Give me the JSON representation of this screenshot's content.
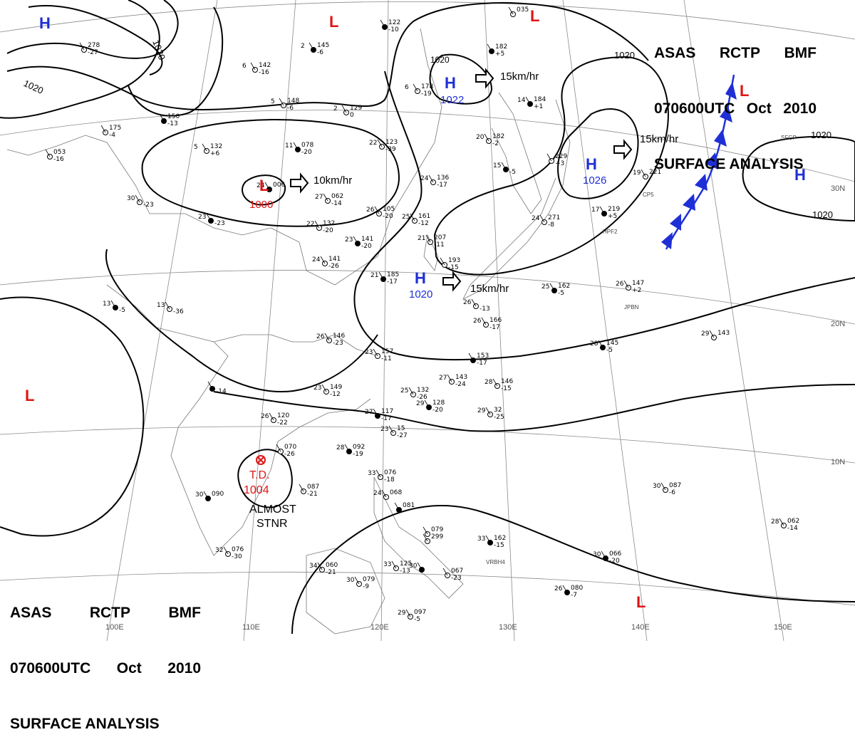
{
  "header": {
    "line1": [
      "ASAS",
      "RCTP",
      "BMF"
    ],
    "line2": [
      "070600UTC",
      "Oct",
      "2010"
    ],
    "line3": "SURFACE ANALYSIS"
  },
  "colors": {
    "high": "#1f2fd6",
    "low": "#e01414",
    "front": "#1f2fd6",
    "isobar": "#000000",
    "grid": "#888888"
  },
  "pressure_centers": [
    {
      "type": "H",
      "label": "H",
      "value": "1022"
    },
    {
      "type": "H",
      "label": "H",
      "value": "1026"
    },
    {
      "type": "H",
      "label": "H",
      "value": "1020"
    },
    {
      "type": "H",
      "label": "H",
      "value": ""
    },
    {
      "type": "H",
      "label": "H",
      "value": ""
    },
    {
      "type": "L",
      "label": "L",
      "value": "1000"
    },
    {
      "type": "L",
      "label": "L",
      "value": ""
    },
    {
      "type": "L",
      "label": "L",
      "value": ""
    },
    {
      "type": "L",
      "label": "L",
      "value": ""
    },
    {
      "type": "L",
      "label": "L",
      "value": ""
    },
    {
      "type": "L",
      "label": "L",
      "value": ""
    }
  ],
  "tropical_depression": {
    "label": "T.D.",
    "pressure": "1004",
    "motion": [
      "ALMOST",
      "STNR"
    ]
  },
  "movements": [
    "15km/hr",
    "15km/hr",
    "10km/hr",
    "15km/hr"
  ],
  "isobar_labels": [
    "1020",
    "1020",
    "1020",
    "1020",
    "1020",
    "1020"
  ],
  "longitude_labels": [
    "100E",
    "110E",
    "120E",
    "130E",
    "140E",
    "150E"
  ],
  "latitude_labels": [
    "30N",
    "20N",
    "10N"
  ],
  "stations": [
    {
      "temp": "",
      "p": "122",
      "t": "-10"
    },
    {
      "temp": "",
      "p": "035",
      "t": ""
    },
    {
      "temp": "",
      "p": "278",
      "t": "-27"
    },
    {
      "temp": "2",
      "p": "145",
      "t": "-6"
    },
    {
      "temp": "6",
      "p": "142",
      "t": "-16"
    },
    {
      "temp": "6",
      "p": "178",
      "t": "-19"
    },
    {
      "temp": "",
      "p": "182",
      "t": "+5"
    },
    {
      "temp": "5",
      "p": "148",
      "t": "-6"
    },
    {
      "temp": "2",
      "p": "129",
      "t": "0"
    },
    {
      "temp": "",
      "p": "150",
      "t": "-13"
    },
    {
      "temp": "",
      "p": "175",
      "t": "-4"
    },
    {
      "temp": "5",
      "p": "132",
      "t": "+6"
    },
    {
      "temp": "11",
      "p": "078",
      "t": "-20"
    },
    {
      "temp": "22",
      "p": "123",
      "t": "-39"
    },
    {
      "temp": "20",
      "p": "182",
      "t": "-2"
    },
    {
      "temp": "14",
      "p": "184",
      "t": "+1"
    },
    {
      "temp": "",
      "p": "229",
      "t": "+3"
    },
    {
      "temp": "",
      "p": "053",
      "t": "-16"
    },
    {
      "temp": "24",
      "p": "006",
      "t": ""
    },
    {
      "temp": "27",
      "p": "062",
      "t": "-14"
    },
    {
      "temp": "24",
      "p": "136",
      "t": "-17"
    },
    {
      "temp": "15",
      "p": "",
      "t": "-5"
    },
    {
      "temp": "19",
      "p": "221",
      "t": ""
    },
    {
      "temp": "30",
      "p": "",
      "t": "-23"
    },
    {
      "temp": "23",
      "p": "",
      "t": "-23"
    },
    {
      "temp": "26",
      "p": "105",
      "t": "-20"
    },
    {
      "temp": "25",
      "p": "161",
      "t": "-12"
    },
    {
      "temp": "17",
      "p": "219",
      "t": "+5"
    },
    {
      "temp": "24",
      "p": "271",
      "t": "-8"
    },
    {
      "temp": "22",
      "p": "132",
      "t": "-20"
    },
    {
      "temp": "23",
      "p": "141",
      "t": "-20"
    },
    {
      "temp": "21",
      "p": "207",
      "t": "-11"
    },
    {
      "temp": "24",
      "p": "141",
      "t": "-26"
    },
    {
      "temp": "21",
      "p": "185",
      "t": "-17"
    },
    {
      "temp": "",
      "p": "193",
      "t": "-15"
    },
    {
      "temp": "26",
      "p": "",
      "t": "-13"
    },
    {
      "temp": "25",
      "p": "162",
      "t": "-5"
    },
    {
      "temp": "26",
      "p": "147",
      "t": "+2"
    },
    {
      "temp": "13",
      "p": "",
      "t": "-36"
    },
    {
      "temp": "13",
      "p": "",
      "t": "-5"
    },
    {
      "temp": "26",
      "p": "146",
      "t": "-23"
    },
    {
      "temp": "26",
      "p": "166",
      "t": "-17"
    },
    {
      "temp": "28",
      "p": "145",
      "t": "-5"
    },
    {
      "temp": "29",
      "p": "143",
      "t": ""
    },
    {
      "temp": "23",
      "p": "157",
      "t": "-11"
    },
    {
      "temp": "",
      "p": "153",
      "t": "-17"
    },
    {
      "temp": "27",
      "p": "143",
      "t": "-24"
    },
    {
      "temp": "28",
      "p": "146",
      "t": "-15"
    },
    {
      "temp": "",
      "p": "",
      "t": "-14"
    },
    {
      "temp": "23",
      "p": "149",
      "t": "-12"
    },
    {
      "temp": "25",
      "p": "132",
      "t": "-26"
    },
    {
      "temp": "29",
      "p": "128",
      "t": "-20"
    },
    {
      "temp": "29",
      "p": "32",
      "t": "-25"
    },
    {
      "temp": "26",
      "p": "120",
      "t": "-22"
    },
    {
      "temp": "27",
      "p": "117",
      "t": "-17"
    },
    {
      "temp": "23",
      "p": "15",
      "t": "-27"
    },
    {
      "temp": "",
      "p": "070",
      "t": "-26"
    },
    {
      "temp": "28",
      "p": "092",
      "t": "-19"
    },
    {
      "temp": "33",
      "p": "076",
      "t": "-18"
    },
    {
      "temp": "30",
      "p": "087",
      "t": "-6"
    },
    {
      "temp": "30",
      "p": "090",
      "t": ""
    },
    {
      "temp": "",
      "p": "087",
      "t": "-21"
    },
    {
      "temp": "24",
      "p": "068",
      "t": ""
    },
    {
      "temp": "",
      "p": "081",
      "t": ""
    },
    {
      "temp": "",
      "p": "079",
      "t": ""
    },
    {
      "temp": "",
      "p": "299",
      "t": ""
    },
    {
      "temp": "33",
      "p": "162",
      "t": "-15"
    },
    {
      "temp": "28",
      "p": "062",
      "t": "-14"
    },
    {
      "temp": "32",
      "p": "076",
      "t": "-30"
    },
    {
      "temp": "30",
      "p": "066",
      "t": "-20"
    },
    {
      "temp": "34",
      "p": "060",
      "t": "-21"
    },
    {
      "temp": "33",
      "p": "125",
      "t": "-13"
    },
    {
      "temp": "30",
      "p": "",
      "t": ""
    },
    {
      "temp": "",
      "p": "067",
      "t": "-23"
    },
    {
      "temp": "30",
      "p": "079",
      "t": "-9"
    },
    {
      "temp": "26",
      "p": "080",
      "t": "-7"
    },
    {
      "temp": "29",
      "p": "097",
      "t": "-5"
    }
  ],
  "station_ids": [
    "SFGP",
    "CP5",
    "HPF2",
    "JPBN",
    "VRBH4"
  ]
}
